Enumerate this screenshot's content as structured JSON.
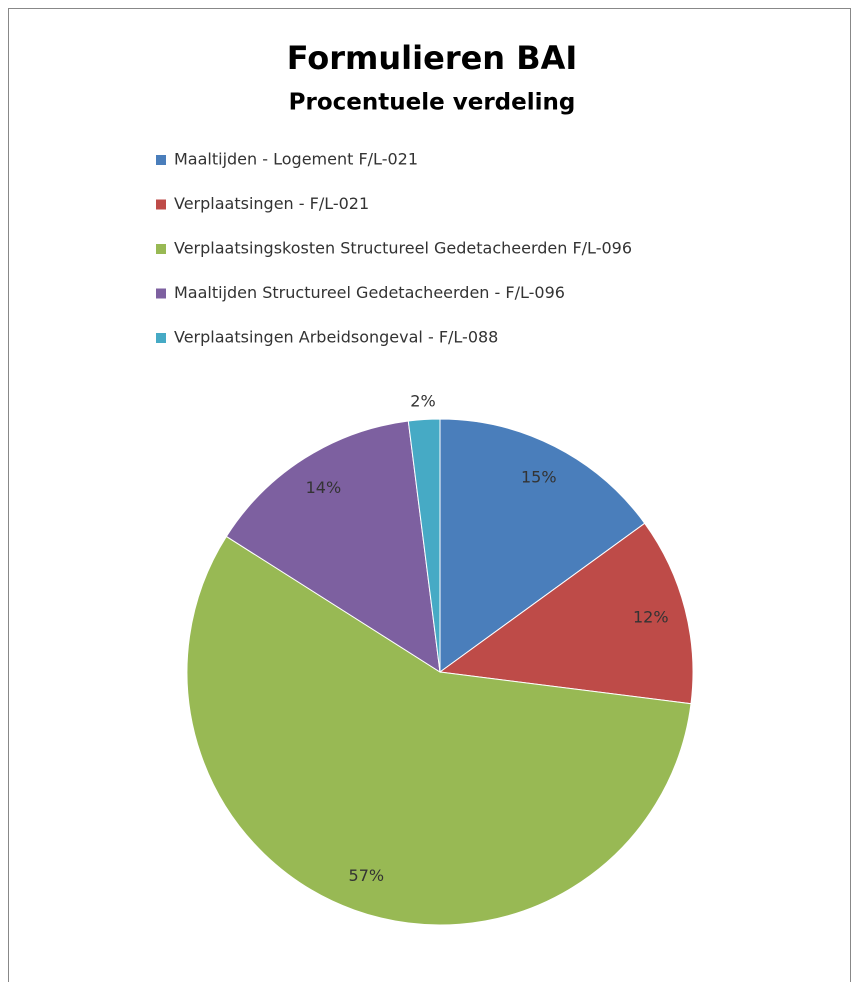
{
  "chart_data": {
    "type": "pie",
    "title": "Formulieren BAI",
    "subtitle": "Procentuele verdeling",
    "categories": [
      "Maaltijden - Logement F/L-021",
      "Verplaatsingen - F/L-021",
      "Verplaatsingskosten Structureel Gedetacheerden F/L-096",
      "Maaltijden Structureel Gedetacheerden - F/L-096",
      "Verplaatsingen Arbeidsongeval - F/L-088"
    ],
    "values": [
      15,
      12,
      57,
      14,
      2
    ],
    "value_labels": [
      "15%",
      "12%",
      "57%",
      "14%",
      "2%"
    ],
    "colors": [
      "#4a7ebb",
      "#be4b48",
      "#98b954",
      "#7d60a0",
      "#46aac5"
    ],
    "legend": "top"
  }
}
